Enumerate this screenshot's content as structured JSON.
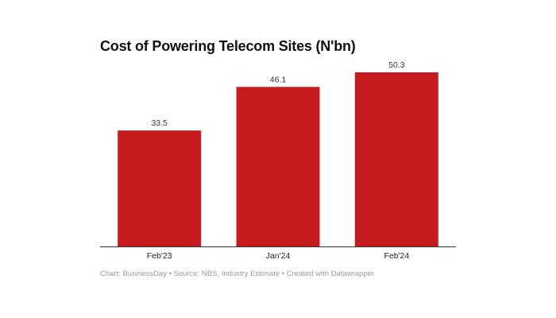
{
  "chart_data": {
    "type": "bar",
    "title": "Cost of Powering Telecom Sites (N'bn)",
    "categories": [
      "Feb'23",
      "Jan'24",
      "Feb'24"
    ],
    "values": [
      33.5,
      46.1,
      50.3
    ],
    "data_labels": [
      "33.5",
      "46.1",
      "50.3"
    ],
    "xlabel": "",
    "ylabel": "",
    "ylim": [
      0,
      50.3
    ],
    "grid": false,
    "bar_color": "#c71c1f",
    "footer": "Chart: BusinessDay • Source: NBS, Industry Estimate • Created with Datawrapper"
  }
}
